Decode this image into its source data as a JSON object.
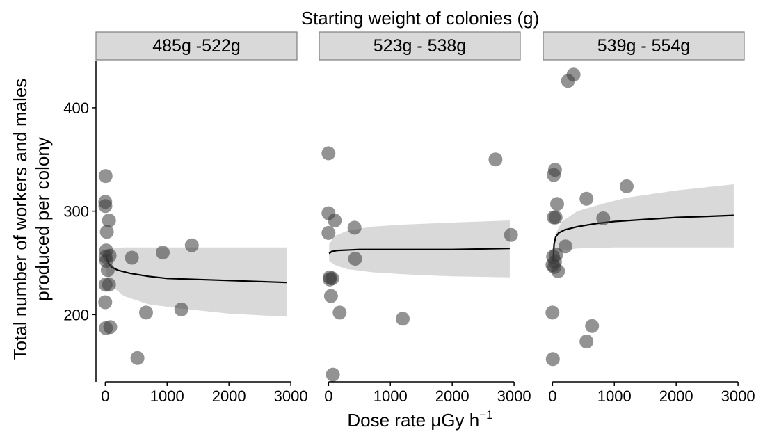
{
  "chart_data": {
    "type": "scatter",
    "facet_title": "Starting weight of colonies (g)",
    "xlabel_text": "Dose rate μGy h",
    "xlabel_superscript": "−1",
    "ylabel_line1": "Total number of workers and males",
    "ylabel_line2": "produced per colony",
    "xlim": [
      -150,
      3100
    ],
    "ylim": [
      135,
      445
    ],
    "x_ticks": [
      0,
      1000,
      2000,
      3000
    ],
    "x_tick_labels": [
      "0",
      "1000",
      "2000",
      "3000"
    ],
    "y_ticks": [
      200,
      300,
      400
    ],
    "y_tick_labels": [
      "200",
      "300",
      "400"
    ],
    "grid": false,
    "legend": "none",
    "colors": {
      "points": "#3a3a3a",
      "ribbon": "#d9d9d9",
      "line": "#000000",
      "strip": "#d9d9d9",
      "strip_border": "#7f7f7f"
    },
    "panels": [
      {
        "label": "485g -522g",
        "points": [
          [
            5,
            334
          ],
          [
            0,
            309
          ],
          [
            2,
            305
          ],
          [
            60,
            291
          ],
          [
            25,
            280
          ],
          [
            15,
            262
          ],
          [
            70,
            257
          ],
          [
            5,
            256
          ],
          [
            18,
            252
          ],
          [
            40,
            243
          ],
          [
            5,
            229
          ],
          [
            60,
            229
          ],
          [
            0,
            212
          ],
          [
            10,
            187
          ],
          [
            80,
            188
          ],
          [
            430,
            255
          ],
          [
            930,
            260
          ],
          [
            1400,
            267
          ],
          [
            1230,
            205
          ],
          [
            660,
            202
          ],
          [
            520,
            158
          ]
        ],
        "fit": [
          [
            10,
            257
          ],
          [
            50,
            250
          ],
          [
            100,
            246
          ],
          [
            200,
            243
          ],
          [
            400,
            240
          ],
          [
            700,
            237
          ],
          [
            1000,
            235
          ],
          [
            1500,
            234
          ],
          [
            2000,
            233
          ],
          [
            2500,
            232
          ],
          [
            2930,
            231
          ]
        ],
        "ribbon_upper": [
          [
            10,
            262
          ],
          [
            100,
            264
          ],
          [
            300,
            265
          ],
          [
            1000,
            265
          ],
          [
            2000,
            265
          ],
          [
            2930,
            265
          ]
        ],
        "ribbon_lower": [
          [
            10,
            240
          ],
          [
            100,
            228
          ],
          [
            300,
            218
          ],
          [
            700,
            210
          ],
          [
            1200,
            206
          ],
          [
            2000,
            201
          ],
          [
            2930,
            198
          ]
        ]
      },
      {
        "label": "523g - 538g",
        "points": [
          [
            0,
            356
          ],
          [
            0,
            298
          ],
          [
            100,
            291
          ],
          [
            0,
            279
          ],
          [
            20,
            236
          ],
          [
            60,
            235
          ],
          [
            20,
            234
          ],
          [
            40,
            218
          ],
          [
            180,
            202
          ],
          [
            70,
            142
          ],
          [
            420,
            284
          ],
          [
            430,
            254
          ],
          [
            1200,
            196
          ],
          [
            2700,
            350
          ],
          [
            2950,
            277
          ]
        ],
        "fit": [
          [
            10,
            259
          ],
          [
            50,
            261
          ],
          [
            150,
            262
          ],
          [
            500,
            263
          ],
          [
            1000,
            263
          ],
          [
            2000,
            263
          ],
          [
            2930,
            264
          ]
        ],
        "ribbon_upper": [
          [
            10,
            268
          ],
          [
            100,
            276
          ],
          [
            300,
            281
          ],
          [
            700,
            285
          ],
          [
            1200,
            287
          ],
          [
            2000,
            289
          ],
          [
            2930,
            291
          ]
        ],
        "ribbon_lower": [
          [
            10,
            252
          ],
          [
            100,
            248
          ],
          [
            300,
            244
          ],
          [
            700,
            241
          ],
          [
            1200,
            239
          ],
          [
            2000,
            237
          ],
          [
            2930,
            236
          ]
        ]
      },
      {
        "label": "539g - 554g",
        "points": [
          [
            250,
            426
          ],
          [
            340,
            432
          ],
          [
            40,
            340
          ],
          [
            20,
            335
          ],
          [
            75,
            307
          ],
          [
            20,
            294
          ],
          [
            50,
            294
          ],
          [
            550,
            312
          ],
          [
            1200,
            324
          ],
          [
            820,
            293
          ],
          [
            210,
            266
          ],
          [
            60,
            258
          ],
          [
            10,
            256
          ],
          [
            40,
            251
          ],
          [
            0,
            248
          ],
          [
            30,
            246
          ],
          [
            90,
            242
          ],
          [
            0,
            202
          ],
          [
            640,
            189
          ],
          [
            550,
            174
          ],
          [
            5,
            157
          ]
        ],
        "fit": [
          [
            10,
            252
          ],
          [
            25,
            268
          ],
          [
            50,
            275
          ],
          [
            100,
            279
          ],
          [
            200,
            282
          ],
          [
            400,
            285
          ],
          [
            700,
            288
          ],
          [
            1000,
            290
          ],
          [
            1500,
            292
          ],
          [
            2000,
            294
          ],
          [
            2500,
            295
          ],
          [
            2930,
            296
          ]
        ],
        "ribbon_upper": [
          [
            10,
            265
          ],
          [
            50,
            278
          ],
          [
            150,
            290
          ],
          [
            400,
            300
          ],
          [
            800,
            307
          ],
          [
            1200,
            313
          ],
          [
            2000,
            320
          ],
          [
            2930,
            326
          ]
        ],
        "ribbon_lower": [
          [
            10,
            240
          ],
          [
            50,
            255
          ],
          [
            150,
            262
          ],
          [
            400,
            264
          ],
          [
            1000,
            265
          ],
          [
            2000,
            265
          ],
          [
            2930,
            265
          ]
        ]
      }
    ]
  }
}
